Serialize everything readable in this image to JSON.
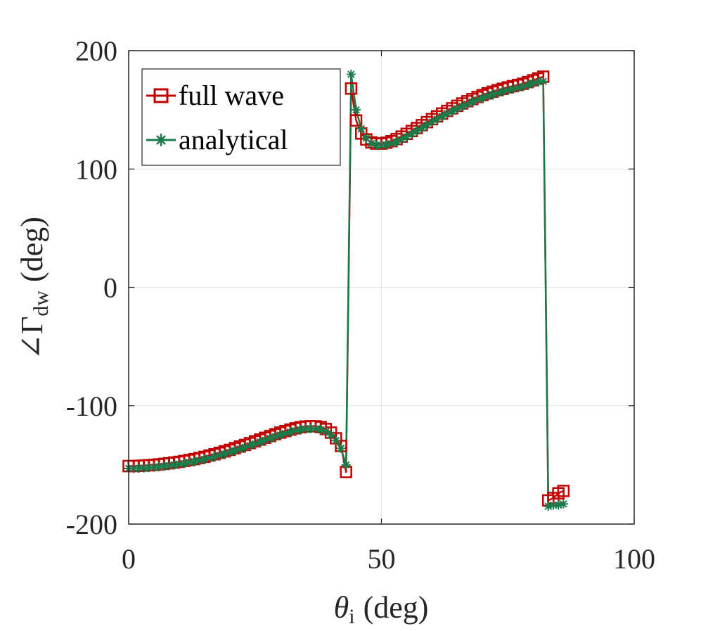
{
  "chart_data": {
    "type": "line",
    "xlabel": "θi (deg)",
    "xlabel_symbol": "θ",
    "xlabel_subscript": "i",
    "xlabel_units": "(deg)",
    "ylabel": "∠Γdw (deg)",
    "ylabel_symbol": "∠Γ",
    "ylabel_subscript": "dw",
    "ylabel_units": "(deg)",
    "xlim": [
      0,
      100
    ],
    "ylim": [
      -200,
      200
    ],
    "xticks": [
      0,
      50,
      100
    ],
    "yticks": [
      -200,
      -100,
      0,
      100,
      200
    ],
    "xtick_labels": [
      "0",
      "50",
      "100"
    ],
    "ytick_labels": [
      "-200",
      "-100",
      "0",
      "100",
      "200"
    ],
    "grid": true,
    "legend_position": "top-left",
    "series": [
      {
        "name": "full wave",
        "color": "#C00000",
        "marker": "square",
        "x": [
          0,
          1,
          2,
          3,
          4,
          5,
          6,
          7,
          8,
          9,
          10,
          11,
          12,
          13,
          14,
          15,
          16,
          17,
          18,
          19,
          20,
          21,
          22,
          23,
          24,
          25,
          26,
          27,
          28,
          29,
          30,
          31,
          32,
          33,
          34,
          35,
          36,
          37,
          38,
          39,
          40,
          41,
          42,
          43,
          44,
          45,
          46,
          47,
          48,
          49,
          50,
          51,
          52,
          53,
          54,
          55,
          56,
          57,
          58,
          59,
          60,
          61,
          62,
          63,
          64,
          65,
          66,
          67,
          68,
          69,
          70,
          71,
          72,
          73,
          74,
          75,
          76,
          77,
          78,
          79,
          80,
          81,
          82,
          83,
          84,
          85,
          86
        ],
        "y": [
          -151.0,
          -151.0,
          -150.8,
          -150.6,
          -150.3,
          -150.0,
          -149.6,
          -149.1,
          -148.6,
          -148.0,
          -147.4,
          -146.7,
          -145.9,
          -145.1,
          -144.2,
          -143.2,
          -142.1,
          -141.0,
          -139.8,
          -138.6,
          -137.3,
          -135.9,
          -134.5,
          -133.1,
          -131.6,
          -130.1,
          -128.6,
          -127.1,
          -125.6,
          -124.1,
          -122.7,
          -121.4,
          -120.2,
          -119.1,
          -118.2,
          -117.6,
          -117.3,
          -117.4,
          -118.1,
          -119.7,
          -122.7,
          -127.5,
          -134.0,
          -156.0,
          168.0,
          141.0,
          130.0,
          125.0,
          122.5,
          121.5,
          121.5,
          122.2,
          123.5,
          125.3,
          127.4,
          129.7,
          132.1,
          134.6,
          137.1,
          139.6,
          142.1,
          144.5,
          146.9,
          149.1,
          151.3,
          153.4,
          155.4,
          157.3,
          159.1,
          160.8,
          162.4,
          163.9,
          165.3,
          166.6,
          167.8,
          169.0,
          170.0,
          171.0,
          172.0,
          173.5,
          175.0,
          176.5,
          178.0,
          -180.0,
          -178.0,
          -174.0,
          -172.0
        ]
      },
      {
        "name": "analytical",
        "color": "#1B7A4A",
        "marker": "asterisk",
        "x": [
          0,
          1,
          2,
          3,
          4,
          5,
          6,
          7,
          8,
          9,
          10,
          11,
          12,
          13,
          14,
          15,
          16,
          17,
          18,
          19,
          20,
          21,
          22,
          23,
          24,
          25,
          26,
          27,
          28,
          29,
          30,
          31,
          32,
          33,
          34,
          35,
          36,
          37,
          38,
          39,
          40,
          41,
          42,
          43,
          44,
          45,
          46,
          47,
          48,
          49,
          50,
          51,
          52,
          53,
          54,
          55,
          56,
          57,
          58,
          59,
          60,
          61,
          62,
          63,
          64,
          65,
          66,
          67,
          68,
          69,
          70,
          71,
          72,
          73,
          74,
          75,
          76,
          77,
          78,
          79,
          80,
          81,
          82,
          83,
          84,
          85,
          86
        ],
        "y": [
          -153.0,
          -153.0,
          -152.8,
          -152.6,
          -152.3,
          -152.0,
          -151.6,
          -151.1,
          -150.6,
          -150.0,
          -149.4,
          -148.7,
          -147.9,
          -147.1,
          -146.2,
          -145.2,
          -144.1,
          -143.0,
          -141.8,
          -140.6,
          -139.3,
          -137.9,
          -136.5,
          -135.1,
          -133.6,
          -132.1,
          -130.6,
          -129.1,
          -127.6,
          -126.1,
          -124.7,
          -123.4,
          -122.2,
          -121.1,
          -120.2,
          -119.6,
          -119.3,
          -119.4,
          -120.1,
          -121.7,
          -124.7,
          -129.5,
          -136.0,
          -150.0,
          180.0,
          150.0,
          134.0,
          126.0,
          121.5,
          120.0,
          120.0,
          120.5,
          121.5,
          123.0,
          125.0,
          127.3,
          129.7,
          132.2,
          134.7,
          137.2,
          139.7,
          142.1,
          144.5,
          146.7,
          148.9,
          151.0,
          153.0,
          154.9,
          156.7,
          158.4,
          160.0,
          161.5,
          162.9,
          164.2,
          165.4,
          166.6,
          167.6,
          168.6,
          169.6,
          171.0,
          172.5,
          173.5,
          174.0,
          -185.0,
          -184.0,
          -184.0,
          -183.0
        ]
      }
    ]
  }
}
